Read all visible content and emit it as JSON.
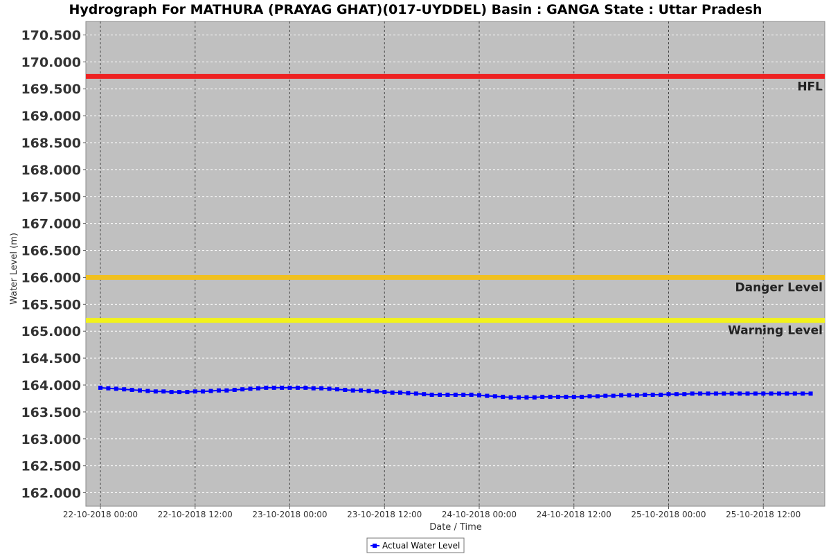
{
  "chart_data": {
    "type": "line",
    "title": "Hydrograph For MATHURA (PRAYAG GHAT)(017-UYDDEL) Basin : GANGA State : Uttar Pradesh",
    "xlabel": "Date / Time",
    "ylabel": "Water Level (m)",
    "ylim": [
      161.75,
      170.75
    ],
    "y_ticks": [
      "162.000",
      "162.500",
      "163.000",
      "163.500",
      "164.000",
      "164.500",
      "165.000",
      "165.500",
      "166.000",
      "166.500",
      "167.000",
      "167.500",
      "168.000",
      "168.500",
      "169.000",
      "169.500",
      "170.000",
      "170.500"
    ],
    "x_ticks": [
      "22-10-2018 00:00",
      "22-10-2018 12:00",
      "23-10-2018 00:00",
      "23-10-2018 12:00",
      "24-10-2018 00:00",
      "24-10-2018 12:00",
      "25-10-2018 00:00",
      "25-10-2018 12:00"
    ],
    "grid": true,
    "legend_position": "bottom",
    "reference_lines": [
      {
        "name": "HFL",
        "value": 169.73,
        "color": "#ee2222"
      },
      {
        "name": "Danger Level",
        "value": 166.0,
        "color": "#f0c020"
      },
      {
        "name": "Warning Level",
        "value": 165.2,
        "color": "#f2f21a"
      }
    ],
    "series": [
      {
        "name": "Actual Water Level",
        "color": "#0000ff",
        "start_hour": 0,
        "step_hours": 1,
        "values": [
          163.95,
          163.94,
          163.93,
          163.92,
          163.91,
          163.9,
          163.89,
          163.88,
          163.88,
          163.87,
          163.87,
          163.87,
          163.88,
          163.88,
          163.89,
          163.9,
          163.9,
          163.91,
          163.92,
          163.93,
          163.94,
          163.95,
          163.95,
          163.95,
          163.95,
          163.95,
          163.95,
          163.94,
          163.94,
          163.93,
          163.92,
          163.91,
          163.9,
          163.9,
          163.89,
          163.88,
          163.87,
          163.86,
          163.86,
          163.85,
          163.84,
          163.83,
          163.82,
          163.82,
          163.82,
          163.82,
          163.82,
          163.82,
          163.81,
          163.8,
          163.79,
          163.78,
          163.77,
          163.77,
          163.77,
          163.77,
          163.78,
          163.78,
          163.78,
          163.78,
          163.78,
          163.78,
          163.79,
          163.79,
          163.8,
          163.8,
          163.81,
          163.81,
          163.81,
          163.82,
          163.82,
          163.82,
          163.83,
          163.83,
          163.83,
          163.84,
          163.84,
          163.84,
          163.84,
          163.84,
          163.84,
          163.84,
          163.84,
          163.84,
          163.84,
          163.84,
          163.84,
          163.84,
          163.84,
          163.84,
          163.84
        ]
      }
    ]
  }
}
